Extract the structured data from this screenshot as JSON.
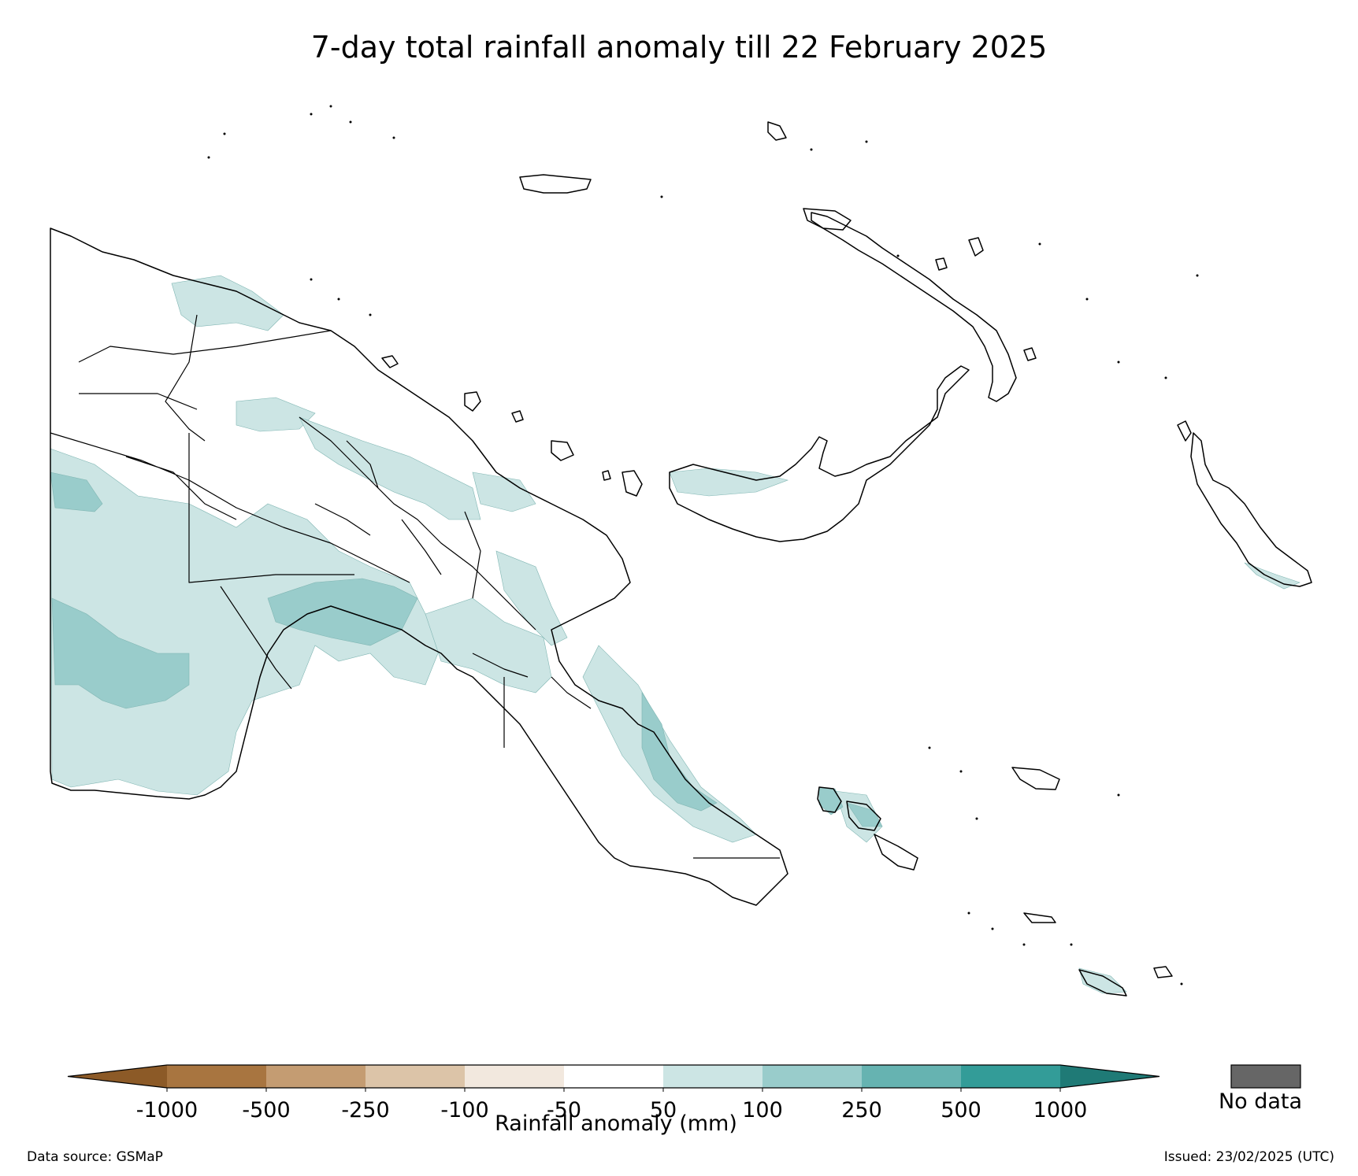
{
  "title": "7-day total rainfall anomaly till 22 February 2025",
  "map": {
    "region": "Papua New Guinea",
    "colors": {
      "land": "#ffffff",
      "border": "#000000",
      "anomaly_50_100": "#cce5e4",
      "anomaly_100_250": "#99cccb",
      "anomaly_250_500": "#66b3b1"
    }
  },
  "legend": {
    "label": "Rainfall anomaly (mm)",
    "ticks": [
      "-1000",
      "-500",
      "-250",
      "-100",
      "-50",
      "50",
      "100",
      "250",
      "500",
      "1000"
    ],
    "bins": [
      {
        "color": "#8c5a27"
      },
      {
        "color": "#a87540"
      },
      {
        "color": "#c49c72"
      },
      {
        "color": "#dcc4a8"
      },
      {
        "color": "#f2e8de"
      },
      {
        "color": "#ffffff"
      },
      {
        "color": "#cce5e4"
      },
      {
        "color": "#99cccb"
      },
      {
        "color": "#66b3b1"
      },
      {
        "color": "#339c98"
      },
      {
        "color": "#1f7a76"
      }
    ],
    "no_data_label": "No data",
    "no_data_color": "#666666"
  },
  "footer": {
    "source": "Data source: GSMaP",
    "issued": "Issued: 23/02/2025 (UTC)"
  }
}
